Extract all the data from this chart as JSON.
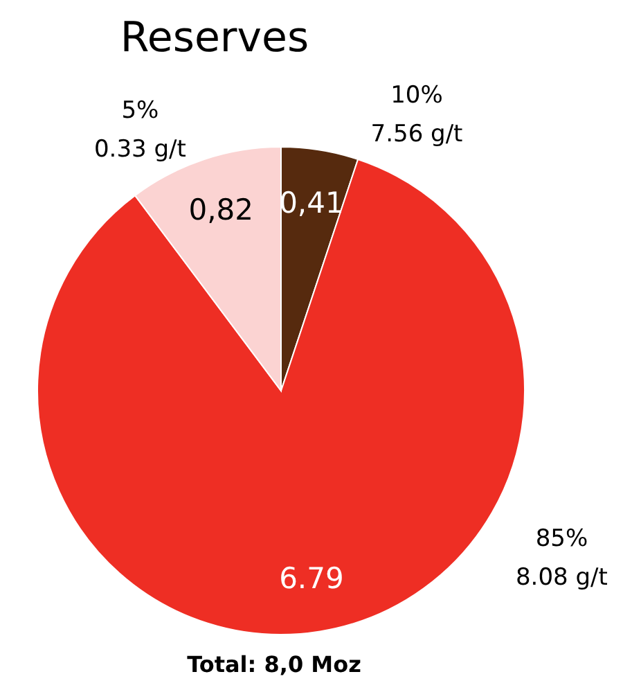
{
  "chart_data": {
    "type": "pie",
    "title": "Reserves",
    "categories": [
      null,
      null,
      null
    ],
    "values": [
      0.41,
      6.79,
      0.82
    ],
    "colors": [
      "#562a0e",
      "#ee2e24",
      "#fbd3d2"
    ],
    "value_labels": [
      "0,41",
      "6.79",
      "0,82"
    ],
    "annotations": [
      "10%\n7.56 g/t",
      "85%\n8.08 g/t",
      "5%\n0.33 g/t",
      "Total: 8,0 Moz"
    ],
    "legend": false
  }
}
